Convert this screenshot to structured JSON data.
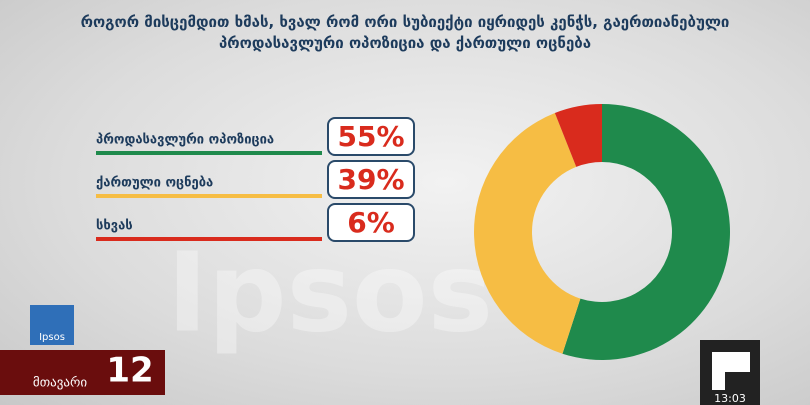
{
  "chart_data": {
    "type": "donut",
    "title": "როგორ მისცემდით ხმას, ხვალ რომ ორი სუბიექტი იყრიდეს კენჭს, გაერთიანებული პროდასავლური ოპოზიცია და ქართული ოცნება",
    "categories": [
      "პროდასავლური ოპოზიცია",
      "ქართული ოცნება",
      "სხვას"
    ],
    "values": [
      55,
      39,
      6
    ],
    "value_labels": [
      "55%",
      "39%",
      "6%"
    ],
    "colors": [
      "#1f8a4c",
      "#f6bd44",
      "#d92b1d"
    ]
  },
  "overlay": {
    "logo": "Ipsos",
    "channel_name": "მთავარი",
    "channel_number": "12",
    "clock": "13:03"
  }
}
